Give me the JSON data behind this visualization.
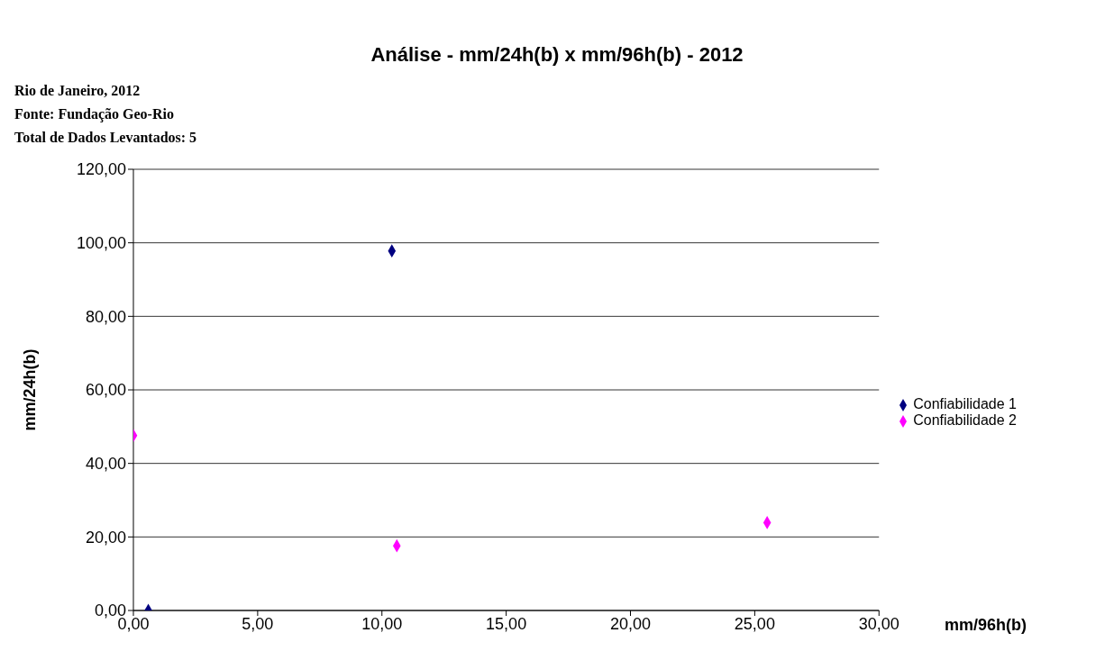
{
  "chart_data": {
    "type": "scatter",
    "title": "Análise - mm/24h(b) x mm/96h(b) - 2012",
    "annotations": [
      "Rio de Janeiro, 2012",
      "Fonte: Fundação Geo-Rio",
      "Total de Dados Levantados: 5"
    ],
    "xlabel": "mm/96h(b)",
    "ylabel": "mm/24h(b)",
    "series": [
      {
        "name": "Confiabilidade 1",
        "color": "#000080",
        "x": [
          0.6,
          10.4
        ],
        "values": [
          0,
          97.8
        ]
      },
      {
        "name": "Confiabilidade 2",
        "color": "#ff00ff",
        "x": [
          0,
          10.6,
          25.5
        ],
        "values": [
          47.6,
          17.6,
          23.9
        ]
      }
    ],
    "xlim": [
      0,
      30
    ],
    "xticks": [
      {
        "value": 0,
        "label": "0,00"
      },
      {
        "value": 5,
        "label": "5,00"
      },
      {
        "value": 10,
        "label": "10,00"
      },
      {
        "value": 15,
        "label": "15,00"
      },
      {
        "value": 20,
        "label": "20,00"
      },
      {
        "value": 25,
        "label": "25,00"
      },
      {
        "value": 30,
        "label": "30,00"
      }
    ],
    "ylim": [
      0,
      120
    ],
    "yticks": [
      {
        "value": 0,
        "label": "0,00"
      },
      {
        "value": 20,
        "label": "20,00"
      },
      {
        "value": 40,
        "label": "40,00"
      },
      {
        "value": 60,
        "label": "60,00"
      },
      {
        "value": 80,
        "label": "80,00"
      },
      {
        "value": 100,
        "label": "100,00"
      },
      {
        "value": 120,
        "label": "120,00"
      }
    ],
    "grid": "y",
    "legend": "right",
    "marker": "diamond"
  }
}
